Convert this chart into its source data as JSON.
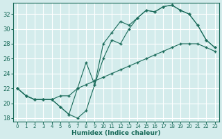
{
  "xlabel": "Humidex (Indice chaleur)",
  "background_color": "#d4ecec",
  "grid_color": "#ffffff",
  "line_color": "#1a6b5a",
  "xlim": [
    -0.5,
    23.5
  ],
  "ylim": [
    17.5,
    33.5
  ],
  "yticks": [
    18,
    20,
    22,
    24,
    26,
    28,
    30,
    32
  ],
  "xticks": [
    0,
    1,
    2,
    3,
    4,
    5,
    6,
    7,
    8,
    9,
    10,
    11,
    12,
    13,
    14,
    15,
    16,
    17,
    18,
    19,
    20,
    21,
    22,
    23
  ],
  "curve1_x": [
    0,
    1,
    2,
    3,
    4,
    5,
    6,
    7,
    8,
    9,
    10,
    11,
    12,
    13,
    14,
    15,
    16,
    17,
    18,
    19,
    20,
    21,
    22,
    23
  ],
  "curve1_y": [
    22.0,
    21.0,
    20.5,
    20.5,
    20.5,
    19.5,
    18.5,
    18.0,
    19.0,
    22.5,
    28.0,
    29.5,
    31.0,
    30.5,
    31.5,
    32.5,
    32.3,
    33.0,
    33.2,
    32.5,
    32.0,
    30.5,
    28.5,
    27.5
  ],
  "curve2_x": [
    0,
    1,
    2,
    3,
    4,
    5,
    6,
    7,
    8,
    9,
    10,
    11,
    12,
    13,
    14,
    15,
    16,
    17,
    18,
    19,
    20,
    21,
    22,
    23
  ],
  "curve2_y": [
    22.0,
    21.0,
    20.5,
    20.5,
    20.5,
    19.5,
    18.5,
    22.0,
    25.5,
    22.5,
    26.0,
    28.5,
    28.0,
    30.0,
    31.5,
    32.5,
    32.3,
    33.0,
    33.2,
    32.5,
    32.0,
    30.5,
    28.5,
    27.5
  ],
  "curve3_x": [
    0,
    1,
    2,
    3,
    4,
    5,
    6,
    7,
    8,
    9,
    10,
    11,
    12,
    13,
    14,
    15,
    16,
    17,
    18,
    19,
    20,
    21,
    22,
    23
  ],
  "curve3_y": [
    22.0,
    21.0,
    20.5,
    20.5,
    20.5,
    21.0,
    21.0,
    22.0,
    22.5,
    23.0,
    23.5,
    24.0,
    24.5,
    25.0,
    25.5,
    26.0,
    26.5,
    27.0,
    27.5,
    28.0,
    28.0,
    28.0,
    27.5,
    27.0
  ]
}
